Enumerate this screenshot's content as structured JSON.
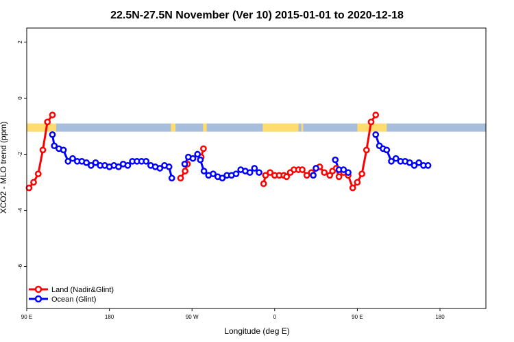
{
  "chart_data": {
    "type": "line",
    "title": "22.5N-27.5N November (Ver 10)   2015-01-01 to 2020-12-18",
    "xlabel": "Longitude (deg E)",
    "ylabel": "XCO2 - MLO trend (ppm)",
    "xlim": [
      90,
      590
    ],
    "ylim": [
      -7.5,
      2.5
    ],
    "x_ticks": [
      {
        "value": 90,
        "label": "90 E"
      },
      {
        "value": 180,
        "label": "180"
      },
      {
        "value": 270,
        "label": "90 W"
      },
      {
        "value": 360,
        "label": "0"
      },
      {
        "value": 450,
        "label": "90 E"
      },
      {
        "value": 540,
        "label": "180"
      }
    ],
    "y_ticks": [
      {
        "value": 2,
        "label": "2"
      },
      {
        "value": 0,
        "label": "0"
      },
      {
        "value": -2,
        "label": "-2"
      },
      {
        "value": -4,
        "label": "-4"
      },
      {
        "value": -6,
        "label": "-6"
      }
    ],
    "grid": false,
    "legend_position": "bottom-left",
    "land_mask": {
      "y_center": -1.05,
      "ocean_color": "#a6bddb",
      "land_color": "#ffdc6f",
      "land_segments": [
        [
          90,
          122
        ],
        [
          247,
          252
        ],
        [
          282,
          286
        ],
        [
          347,
          386
        ],
        [
          389,
          391
        ],
        [
          450,
          482
        ]
      ]
    },
    "series": [
      {
        "name": "Land (Nadir&Glint)",
        "color": "#ff0000",
        "segments": [
          [
            [
              92.5,
              -3.2
            ],
            [
              97.5,
              -3.0
            ],
            [
              102.5,
              -2.7
            ],
            [
              107.5,
              -1.85
            ],
            [
              112.5,
              -0.85
            ],
            [
              118,
              -0.6
            ]
          ],
          [
            [
              257.5,
              -2.85
            ],
            [
              262.5,
              -2.6
            ],
            [
              265,
              -2.35
            ]
          ],
          [
            [
              280,
              -2.1
            ],
            [
              282.5,
              -1.8
            ]
          ],
          [
            [
              348,
              -3.05
            ],
            [
              350,
              -2.75
            ],
            [
              355,
              -2.65
            ],
            [
              360,
              -2.75
            ],
            [
              365,
              -2.75
            ],
            [
              370,
              -2.75
            ],
            [
              373,
              -2.8
            ],
            [
              377,
              -2.65
            ],
            [
              381,
              -2.55
            ],
            [
              386,
              -2.55
            ],
            [
              390,
              -2.55
            ],
            [
              395,
              -2.75
            ],
            [
              400,
              -2.65
            ],
            [
              405,
              -2.5
            ],
            [
              409,
              -2.45
            ],
            [
              414,
              -2.65
            ],
            [
              420,
              -2.75
            ],
            [
              423,
              -2.6
            ],
            [
              427,
              -2.5
            ],
            [
              430,
              -2.8
            ],
            [
              435,
              -2.65
            ],
            [
              440,
              -2.75
            ],
            [
              445,
              -3.2
            ],
            [
              450,
              -3.0
            ],
            [
              455,
              -2.7
            ],
            [
              460,
              -1.85
            ],
            [
              465,
              -0.85
            ],
            [
              470,
              -0.6
            ]
          ]
        ]
      },
      {
        "name": "Ocean (Glint)",
        "color": "#0000ff",
        "segments": [
          [
            [
              118,
              -1.3
            ],
            [
              120,
              -1.7
            ],
            [
              125,
              -1.8
            ],
            [
              130,
              -1.85
            ],
            [
              135,
              -2.25
            ],
            [
              140,
              -2.15
            ],
            [
              145,
              -2.25
            ],
            [
              150,
              -2.25
            ],
            [
              155,
              -2.3
            ],
            [
              160,
              -2.4
            ],
            [
              165,
              -2.3
            ],
            [
              170,
              -2.4
            ],
            [
              175,
              -2.4
            ],
            [
              180,
              -2.45
            ],
            [
              185,
              -2.4
            ],
            [
              190,
              -2.45
            ],
            [
              195,
              -2.35
            ],
            [
              200,
              -2.4
            ],
            [
              205,
              -2.25
            ],
            [
              210,
              -2.25
            ],
            [
              215,
              -2.25
            ],
            [
              220,
              -2.25
            ],
            [
              225,
              -2.4
            ],
            [
              230,
              -2.45
            ],
            [
              235,
              -2.5
            ],
            [
              240,
              -2.4
            ],
            [
              245,
              -2.45
            ],
            [
              248,
              -2.85
            ]
          ],
          [
            [
              262,
              -2.35
            ],
            [
              266,
              -2.1
            ],
            [
              271,
              -2.15
            ],
            [
              276,
              -2.0
            ],
            [
              279,
              -2.2
            ],
            [
              283,
              -2.6
            ],
            [
              288,
              -2.75
            ],
            [
              293,
              -2.7
            ],
            [
              298,
              -2.8
            ],
            [
              303,
              -2.85
            ],
            [
              308,
              -2.75
            ],
            [
              313,
              -2.75
            ],
            [
              318,
              -2.7
            ],
            [
              323,
              -2.55
            ],
            [
              328,
              -2.6
            ],
            [
              333,
              -2.65
            ],
            [
              338,
              -2.5
            ],
            [
              343,
              -2.65
            ]
          ],
          [
            [
              402,
              -2.75
            ],
            [
              405,
              -2.5
            ]
          ],
          [
            [
              426,
              -2.2
            ],
            [
              430,
              -2.55
            ],
            [
              435,
              -2.55
            ],
            [
              440,
              -2.65
            ]
          ],
          [
            [
              470,
              -1.3
            ],
            [
              474,
              -1.7
            ],
            [
              478,
              -1.8
            ],
            [
              482,
              -1.85
            ],
            [
              487,
              -2.25
            ],
            [
              492,
              -2.15
            ],
            [
              497,
              -2.25
            ],
            [
              502,
              -2.25
            ],
            [
              507,
              -2.3
            ],
            [
              512,
              -2.4
            ],
            [
              517,
              -2.3
            ],
            [
              522,
              -2.4
            ],
            [
              527,
              -2.4
            ]
          ]
        ]
      }
    ]
  }
}
